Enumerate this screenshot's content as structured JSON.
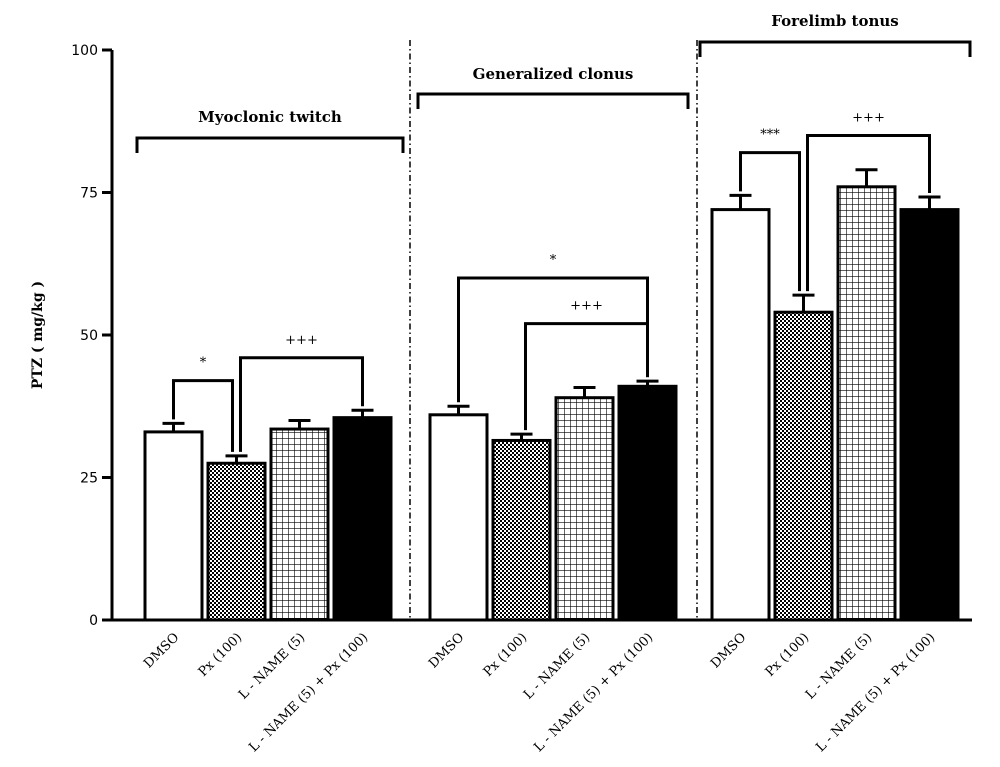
{
  "chart_data": {
    "type": "bar",
    "ylabel": "PTZ ( mg/kg )",
    "ylim": [
      0,
      100
    ],
    "yticks": [
      "0",
      "25",
      "50",
      "75",
      "100"
    ],
    "categories": [
      "DMSO",
      "Px (100)",
      "L - NAME (5)",
      "L - NAME (5) + Px (100)"
    ],
    "fills": [
      "white",
      "checker",
      "grid",
      "black"
    ],
    "groups": [
      {
        "title": "Myoclonic twitch",
        "values": [
          33,
          27.5,
          33.5,
          35.5
        ],
        "errors": [
          1.5,
          1.3,
          1.5,
          1.3
        ],
        "comparisons": [
          {
            "label": "*",
            "from": 0,
            "to": 1,
            "level": 42
          },
          {
            "label": "+++",
            "from": 1,
            "to": 3,
            "level": 46
          }
        ]
      },
      {
        "title": "Generalized clonus",
        "values": [
          36,
          31.5,
          39,
          41
        ],
        "errors": [
          1.5,
          1.1,
          1.8,
          0.9
        ],
        "comparisons": [
          {
            "label": "+++",
            "from": 1,
            "to": 3,
            "level": 52
          },
          {
            "label": "*",
            "from": 0,
            "to": 3,
            "level": 60
          }
        ]
      },
      {
        "title": "Forelimb tonus",
        "values": [
          72,
          54,
          76,
          72
        ],
        "errors": [
          2.5,
          3,
          3,
          2.2
        ],
        "comparisons": [
          {
            "label": "***",
            "from": 0,
            "to": 1,
            "level": 82
          },
          {
            "label": "+++",
            "from": 1,
            "to": 3,
            "level": 85
          }
        ]
      }
    ]
  }
}
